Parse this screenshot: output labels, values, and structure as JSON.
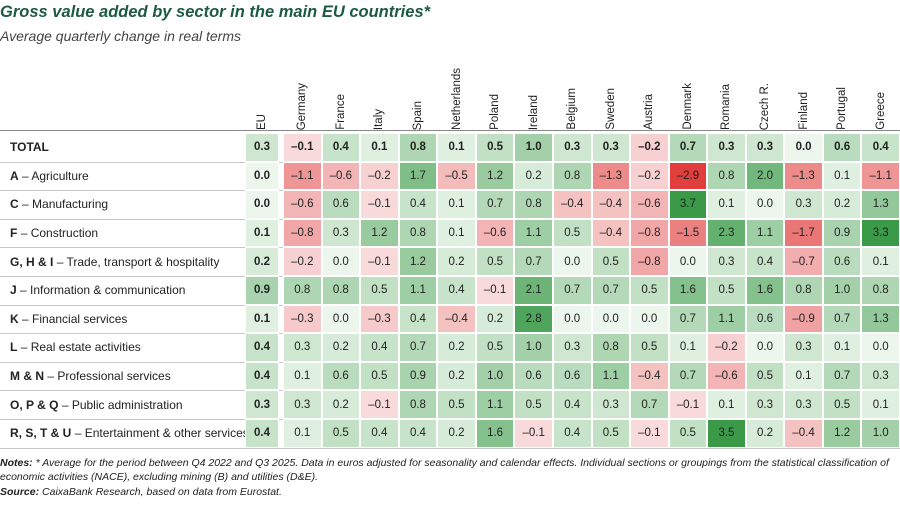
{
  "header": {
    "title": "Gross value added by sector in the main EU countries*",
    "subtitle": "Average quarterly change in real terms"
  },
  "table": {
    "columns": [
      "EU",
      "Germany",
      "France",
      "Italy",
      "Spain",
      "Netherlands",
      "Poland",
      "Ireland",
      "Belgium",
      "Sweden",
      "Austria",
      "Denmark",
      "Romania",
      "Czech R.",
      "Finland",
      "Portugal",
      "Greece"
    ],
    "rows": [
      {
        "code": "TOTAL",
        "cells": [
          "0.3",
          "–0.1",
          "0.4",
          "0.1",
          "0.8",
          "0.1",
          "0.5",
          "1.0",
          "0.3",
          "0.3",
          "–0.2",
          "0.7",
          "0.3",
          "0.3",
          "0.0",
          "0.6",
          "0.4"
        ]
      },
      {
        "code": "A",
        "name": "– Agriculture",
        "cells": [
          "0.0",
          "–1.1",
          "–0.6",
          "–0.2",
          "1.7",
          "–0.5",
          "1.2",
          "0.2",
          "0.8",
          "–1.3",
          "–0.2",
          "–2.9",
          "0.8",
          "2.0",
          "–1.3",
          "0.1",
          "–1.1"
        ]
      },
      {
        "code": "C",
        "name": "– Manufacturing",
        "cells": [
          "0.0",
          "–0.6",
          "0.6",
          "–0.1",
          "0.4",
          "0.1",
          "0.7",
          "0.8",
          "–0.4",
          "–0.4",
          "–0.6",
          "3.7",
          "0.1",
          "0.0",
          "0.3",
          "0.2",
          "1.3"
        ]
      },
      {
        "code": "F",
        "name": "– Construction",
        "cells": [
          "0.1",
          "–0.8",
          "0.3",
          "1.2",
          "0.8",
          "0.1",
          "–0.6",
          "1.1",
          "0.5",
          "–0.4",
          "–0.8",
          "–1.5",
          "2.3",
          "1.1",
          "–1.7",
          "0.9",
          "3.3"
        ]
      },
      {
        "code": "G, H & I",
        "name": "– Trade, transport & hospitality",
        "cells": [
          "0.2",
          "–0.2",
          "0.0",
          "–0.1",
          "1.2",
          "0.2",
          "0.5",
          "0.7",
          "0.0",
          "0.5",
          "–0.8",
          "0.0",
          "0.3",
          "0.4",
          "–0.7",
          "0.6",
          "0.1"
        ]
      },
      {
        "code": "J",
        "name": "– Information & communication",
        "cells": [
          "0.9",
          "0.8",
          "0.8",
          "0.5",
          "1.1",
          "0.4",
          "–0.1",
          "2.1",
          "0.7",
          "0.7",
          "0.5",
          "1.6",
          "0.5",
          "1.6",
          "0.8",
          "1.0",
          "0.8"
        ]
      },
      {
        "code": "K",
        "name": "– Financial services",
        "cells": [
          "0.1",
          "–0.3",
          "0.0",
          "–0.3",
          "0.4",
          "–0.4",
          "0.2",
          "2.8",
          "0.0",
          "0.0",
          "0.0",
          "0.7",
          "1.1",
          "0.6",
          "–0.9",
          "0.7",
          "1.3"
        ]
      },
      {
        "code": "L",
        "name": "– Real estate activities",
        "cells": [
          "0.4",
          "0.3",
          "0.2",
          "0.4",
          "0.7",
          "0.2",
          "0.5",
          "1.0",
          "0.3",
          "0.8",
          "0.5",
          "0.1",
          "–0.2",
          "0.0",
          "0.3",
          "0.1",
          "0.0"
        ]
      },
      {
        "code": "M & N",
        "name": "– Professional services",
        "cells": [
          "0.4",
          "0.1",
          "0.6",
          "0.5",
          "0.9",
          "0.2",
          "1.0",
          "0.6",
          "0.6",
          "1.1",
          "–0.4",
          "0.7",
          "–0.6",
          "0.5",
          "0.1",
          "0.7",
          "0.3"
        ]
      },
      {
        "code": "O, P & Q",
        "name": "– Public administration",
        "cells": [
          "0.3",
          "0.3",
          "0.2",
          "–0.1",
          "0.8",
          "0.5",
          "1.1",
          "0.5",
          "0.4",
          "0.3",
          "0.7",
          "–0.1",
          "0.1",
          "0.3",
          "0.3",
          "0.5",
          "0.1"
        ]
      },
      {
        "code": "R, S, T & U",
        "name": "– Entertainment & other services",
        "cells": [
          "0.4",
          "0.1",
          "0.5",
          "0.4",
          "0.4",
          "0.2",
          "1.6",
          "–0.1",
          "0.4",
          "0.5",
          "–0.1",
          "0.5",
          "3.5",
          "0.2",
          "–0.4",
          "1.2",
          "1.0"
        ]
      }
    ]
  },
  "notes": {
    "label": "Notes:",
    "text": "* Average for the period between Q4 2022 and Q3 2025. Data in euros adjusted for seasonality and calendar effects. Individual sections or groupings from the statistical classification of economic activities (NACE), excluding mining (B) and utilities (D&E)."
  },
  "source": {
    "label": "Source:",
    "text": "CaixaBank Research, based on data from Eurostat."
  }
}
